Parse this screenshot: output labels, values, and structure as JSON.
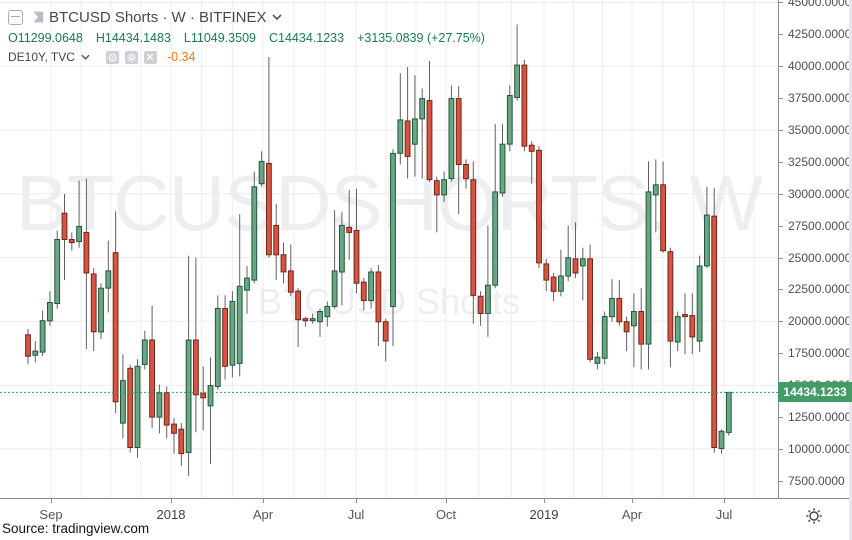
{
  "header": {
    "symbol_title": "BTCUSD Shorts · W · BITFINEX",
    "ohlc": {
      "open": "O11299.0648",
      "high": "H14434.1483",
      "low": "L11049.3509",
      "close": "C14434.1233",
      "change": "+3135.0839 (+27.75%)"
    },
    "compare": {
      "symbol": "DE10Y, TVC",
      "value": "-0.34"
    }
  },
  "watermark": {
    "line1": "BTCUSDSHORTS, W",
    "line2": "BTCUSD Shorts"
  },
  "price_scale": {
    "labels": [
      "45000.0000",
      "42500.0000",
      "40000.0000",
      "37500.0000",
      "35000.0000",
      "32500.0000",
      "30000.0000",
      "27500.0000",
      "25000.0000",
      "22500.0000",
      "20000.0000",
      "17500.0000",
      "15000.0000",
      "12500.0000",
      "10000.0000",
      "7500.0000"
    ],
    "last_price_label": "14434.1233"
  },
  "time_scale": {
    "labels": [
      {
        "text": "Sep",
        "x": 51,
        "year": false
      },
      {
        "text": "2018",
        "x": 171,
        "year": true
      },
      {
        "text": "Apr",
        "x": 263,
        "year": false
      },
      {
        "text": "Jul",
        "x": 356,
        "year": false
      },
      {
        "text": "Oct",
        "x": 446,
        "year": false
      },
      {
        "text": "2019",
        "x": 544,
        "year": true
      },
      {
        "text": "Apr",
        "x": 632,
        "year": false
      },
      {
        "text": "Jul",
        "x": 724,
        "year": false
      }
    ]
  },
  "footer": {
    "source": "Source: tradingview.com"
  },
  "colors": {
    "up_fill": "#6ba583",
    "up_border": "#1c5a3c",
    "down_fill": "#d75442",
    "down_border": "#71251b",
    "wick": "#60615f",
    "grid": "#ececec",
    "last_price_line": "#33996b",
    "badge_bg": "#459b68",
    "ohlc_text": "#1b7c4b",
    "compare_value": "#f57b15"
  },
  "chart_data": {
    "type": "candlestick",
    "symbol": "BTCUSD Shorts",
    "timeframe": "W",
    "exchange": "BITFINEX",
    "ylabel": "price",
    "ylim": [
      5700,
      45200
    ],
    "grid_step": 5000,
    "last_price": 14434.1233,
    "candles_ohlc": [
      [
        18950,
        19400,
        16650,
        17270
      ],
      [
        17350,
        18460,
        16790,
        17670
      ],
      [
        17590,
        20850,
        17270,
        20050
      ],
      [
        20050,
        22360,
        19650,
        21480
      ],
      [
        21400,
        27120,
        21000,
        26410
      ],
      [
        28470,
        29980,
        23230,
        26410
      ],
      [
        26410,
        26970,
        25540,
        26170
      ],
      [
        26250,
        31020,
        25770,
        27440
      ],
      [
        26970,
        31180,
        17830,
        23790
      ],
      [
        23710,
        24180,
        17670,
        19180
      ],
      [
        19180,
        22990,
        18620,
        22600
      ],
      [
        22600,
        26330,
        20690,
        23950
      ],
      [
        25380,
        28630,
        12820,
        13700
      ],
      [
        12030,
        17430,
        10830,
        15360
      ],
      [
        16320,
        16630,
        9720,
        10120
      ],
      [
        10120,
        17030,
        9320,
        16480
      ],
      [
        16630,
        19260,
        16240,
        18540
      ],
      [
        18540,
        21240,
        11630,
        12500
      ],
      [
        12500,
        15050,
        11230,
        14410
      ],
      [
        14410,
        14890,
        10830,
        11870
      ],
      [
        11950,
        12420,
        9640,
        11230
      ],
      [
        11550,
        12030,
        8690,
        9640
      ],
      [
        9720,
        25140,
        7890,
        18540
      ],
      [
        18540,
        24980,
        11310,
        14250
      ],
      [
        14330,
        16480,
        11470,
        14010
      ],
      [
        13380,
        17190,
        8850,
        14970
      ],
      [
        14890,
        22040,
        14650,
        21010
      ],
      [
        21010,
        22040,
        15440,
        16480
      ],
      [
        16560,
        22360,
        15600,
        21560
      ],
      [
        16710,
        28400,
        15680,
        22750
      ],
      [
        22440,
        24340,
        20600,
        23390
      ],
      [
        23230,
        31730,
        22990,
        30540
      ],
      [
        30780,
        33320,
        30540,
        32530
      ],
      [
        32370,
        40710,
        24980,
        25220
      ],
      [
        27520,
        29190,
        23230,
        25220
      ],
      [
        25220,
        26170,
        22990,
        23870
      ],
      [
        23950,
        26010,
        21960,
        22280
      ],
      [
        22360,
        22600,
        17990,
        20130
      ],
      [
        20210,
        20370,
        19580,
        20050
      ],
      [
        20050,
        20610,
        19810,
        20210
      ],
      [
        19970,
        21010,
        18780,
        20770
      ],
      [
        20370,
        21560,
        19580,
        21170
      ],
      [
        21170,
        28710,
        21010,
        23950
      ],
      [
        23870,
        28550,
        21240,
        27520
      ],
      [
        27360,
        30300,
        24820,
        26970
      ],
      [
        27120,
        30380,
        22200,
        22990
      ],
      [
        23070,
        23390,
        20850,
        21640
      ],
      [
        21640,
        24180,
        21010,
        23870
      ],
      [
        23870,
        24420,
        18070,
        19970
      ],
      [
        19970,
        20210,
        16870,
        18460
      ],
      [
        21170,
        33480,
        18070,
        33160
      ],
      [
        33160,
        39440,
        32290,
        35780
      ],
      [
        35700,
        39920,
        31180,
        32920
      ],
      [
        33880,
        39280,
        31340,
        35860
      ],
      [
        35860,
        38250,
        31180,
        37450
      ],
      [
        37290,
        40390,
        30940,
        31100
      ],
      [
        31020,
        31340,
        26970,
        29910
      ],
      [
        29910,
        31730,
        29350,
        31100
      ],
      [
        31180,
        38490,
        30940,
        37450
      ],
      [
        37450,
        38410,
        28400,
        32290
      ],
      [
        32290,
        32690,
        30380,
        31180
      ],
      [
        31100,
        32530,
        19810,
        22040
      ],
      [
        21960,
        22360,
        19650,
        20610
      ],
      [
        20610,
        27520,
        18780,
        22830
      ],
      [
        22830,
        35470,
        22600,
        30140
      ],
      [
        30060,
        35470,
        29750,
        33880
      ],
      [
        33880,
        38490,
        33320,
        37690
      ],
      [
        37530,
        43250,
        37290,
        40070
      ],
      [
        40070,
        40470,
        33320,
        33720
      ],
      [
        33800,
        34120,
        30780,
        33320
      ],
      [
        33400,
        33720,
        24180,
        24580
      ],
      [
        24500,
        24900,
        22360,
        23230
      ],
      [
        23470,
        23790,
        21560,
        22360
      ],
      [
        22360,
        25610,
        21960,
        23550
      ],
      [
        23550,
        27520,
        23150,
        24980
      ],
      [
        24900,
        27760,
        23390,
        23790
      ],
      [
        24340,
        25770,
        21640,
        24900
      ],
      [
        24900,
        26010,
        16790,
        17030
      ],
      [
        16710,
        17590,
        16240,
        17190
      ],
      [
        17110,
        20770,
        16630,
        20370
      ],
      [
        20370,
        23310,
        19970,
        21800
      ],
      [
        21800,
        23230,
        19650,
        19970
      ],
      [
        19970,
        20370,
        17670,
        19180
      ],
      [
        19650,
        22200,
        16400,
        20770
      ],
      [
        20770,
        22600,
        16240,
        18220
      ],
      [
        18220,
        32530,
        16240,
        30140
      ],
      [
        29910,
        32690,
        26970,
        30700
      ],
      [
        30700,
        32530,
        25380,
        25540
      ],
      [
        25460,
        25770,
        16400,
        18460
      ],
      [
        18380,
        20770,
        17670,
        20370
      ],
      [
        20530,
        22200,
        17430,
        20370
      ],
      [
        20450,
        22200,
        17430,
        18780
      ],
      [
        18460,
        25140,
        17590,
        24340
      ],
      [
        24340,
        30540,
        24180,
        28320
      ],
      [
        28240,
        30460,
        9720,
        10120
      ],
      [
        10040,
        11550,
        9640,
        11390
      ],
      [
        11299.06,
        14434.15,
        11049.35,
        14434.12
      ]
    ]
  }
}
